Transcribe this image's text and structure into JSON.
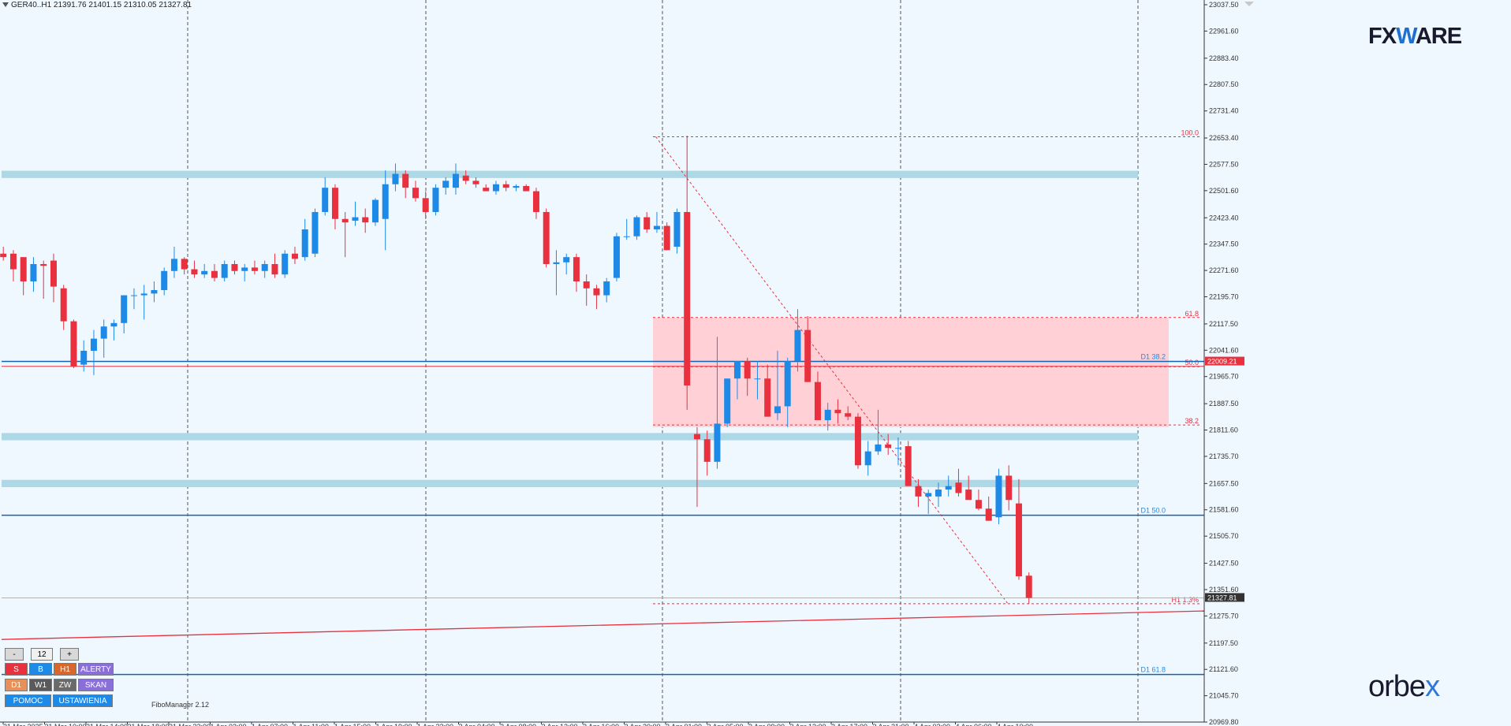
{
  "header": {
    "symbol_info": "GER40..H1  21391.76 21401.15 21310.05 21327.81"
  },
  "colors": {
    "bull": "#1e8ae8",
    "bear": "#e8303f",
    "background": "#f0f8ff",
    "zone": "#add8e6",
    "fib_zone": "#ffd1d6",
    "level_line": "#1464b4"
  },
  "chart_data": {
    "type": "candlestick",
    "symbol": "GER40..",
    "timeframe": "H1",
    "ylim": [
      20969.8,
      23037.5
    ],
    "y_ticks": [
      "23037.50",
      "22961.60",
      "22883.40",
      "22807.50",
      "22731.40",
      "22653.40",
      "22577.50",
      "22501.60",
      "22423.40",
      "22347.50",
      "22271.60",
      "22195.70",
      "22117.50",
      "22041.60",
      "21965.70",
      "21887.50",
      "21811.60",
      "21735.70",
      "21657.50",
      "21581.60",
      "21505.70",
      "21427.50",
      "21351.60",
      "21275.70",
      "21197.50",
      "21121.60",
      "21045.70",
      "20969.80"
    ],
    "x_ticks": [
      "31 Mar 2025",
      "31 Mar 10:00",
      "31 Mar 14:00",
      "31 Mar 18:00",
      "31 Mar 22:00",
      "1 Apr 03:00",
      "1 Apr 07:00",
      "1 Apr 11:00",
      "1 Apr 15:00",
      "1 Apr 19:00",
      "1 Apr 23:00",
      "2 Apr 04:00",
      "2 Apr 08:00",
      "2 Apr 12:00",
      "2 Apr 16:00",
      "2 Apr 20:00",
      "3 Apr 01:00",
      "3 Apr 05:00",
      "3 Apr 09:00",
      "3 Apr 13:00",
      "3 Apr 17:00",
      "3 Apr 21:00",
      "4 Apr 02:00",
      "4 Apr 06:00",
      "4 Apr 10:00"
    ],
    "candles": [
      {
        "o": 22320,
        "h": 22340,
        "l": 22300,
        "c": 22310
      },
      {
        "o": 22320,
        "h": 22330,
        "l": 22240,
        "c": 22275
      },
      {
        "o": 22310,
        "h": 22310,
        "l": 22200,
        "c": 22240
      },
      {
        "o": 22240,
        "h": 22310,
        "l": 22210,
        "c": 22290
      },
      {
        "o": 22290,
        "h": 22300,
        "l": 22190,
        "c": 22285
      },
      {
        "o": 22300,
        "h": 22320,
        "l": 22180,
        "c": 22225
      },
      {
        "o": 22220,
        "h": 22230,
        "l": 22100,
        "c": 22125
      },
      {
        "o": 22125,
        "h": 22130,
        "l": 21990,
        "c": 21995
      },
      {
        "o": 22000,
        "h": 22070,
        "l": 21980,
        "c": 22040
      },
      {
        "o": 22040,
        "h": 22100,
        "l": 21970,
        "c": 22075
      },
      {
        "o": 22075,
        "h": 22130,
        "l": 22020,
        "c": 22110
      },
      {
        "o": 22110,
        "h": 22130,
        "l": 22070,
        "c": 22120
      },
      {
        "o": 22120,
        "h": 22200,
        "l": 22090,
        "c": 22200
      },
      {
        "o": 22200,
        "h": 22220,
        "l": 22160,
        "c": 22200
      },
      {
        "o": 22200,
        "h": 22230,
        "l": 22130,
        "c": 22205
      },
      {
        "o": 22205,
        "h": 22240,
        "l": 22180,
        "c": 22215
      },
      {
        "o": 22215,
        "h": 22280,
        "l": 22200,
        "c": 22270
      },
      {
        "o": 22270,
        "h": 22340,
        "l": 22250,
        "c": 22305
      },
      {
        "o": 22305,
        "h": 22310,
        "l": 22260,
        "c": 22275
      },
      {
        "o": 22275,
        "h": 22300,
        "l": 22250,
        "c": 22260
      },
      {
        "o": 22260,
        "h": 22290,
        "l": 22250,
        "c": 22270
      },
      {
        "o": 22270,
        "h": 22290,
        "l": 22240,
        "c": 22250
      },
      {
        "o": 22250,
        "h": 22300,
        "l": 22240,
        "c": 22290
      },
      {
        "o": 22290,
        "h": 22300,
        "l": 22260,
        "c": 22270
      },
      {
        "o": 22270,
        "h": 22290,
        "l": 22240,
        "c": 22280
      },
      {
        "o": 22280,
        "h": 22300,
        "l": 22260,
        "c": 22270
      },
      {
        "o": 22270,
        "h": 22300,
        "l": 22250,
        "c": 22290
      },
      {
        "o": 22290,
        "h": 22320,
        "l": 22250,
        "c": 22260
      },
      {
        "o": 22260,
        "h": 22330,
        "l": 22250,
        "c": 22320
      },
      {
        "o": 22320,
        "h": 22340,
        "l": 22290,
        "c": 22305
      },
      {
        "o": 22310,
        "h": 22420,
        "l": 22300,
        "c": 22390
      },
      {
        "o": 22320,
        "h": 22450,
        "l": 22310,
        "c": 22440
      },
      {
        "o": 22440,
        "h": 22540,
        "l": 22430,
        "c": 22510
      },
      {
        "o": 22510,
        "h": 22520,
        "l": 22390,
        "c": 22420
      },
      {
        "o": 22420,
        "h": 22440,
        "l": 22310,
        "c": 22410
      },
      {
        "o": 22415,
        "h": 22470,
        "l": 22400,
        "c": 22425
      },
      {
        "o": 22425,
        "h": 22450,
        "l": 22380,
        "c": 22410
      },
      {
        "o": 22410,
        "h": 22480,
        "l": 22400,
        "c": 22475
      },
      {
        "o": 22420,
        "h": 22560,
        "l": 22330,
        "c": 22520
      },
      {
        "o": 22520,
        "h": 22580,
        "l": 22500,
        "c": 22550
      },
      {
        "o": 22550,
        "h": 22560,
        "l": 22480,
        "c": 22510
      },
      {
        "o": 22510,
        "h": 22530,
        "l": 22470,
        "c": 22480
      },
      {
        "o": 22480,
        "h": 22500,
        "l": 22420,
        "c": 22440
      },
      {
        "o": 22440,
        "h": 22520,
        "l": 22430,
        "c": 22510
      },
      {
        "o": 22510,
        "h": 22540,
        "l": 22490,
        "c": 22530
      },
      {
        "o": 22510,
        "h": 22580,
        "l": 22490,
        "c": 22550
      },
      {
        "o": 22545,
        "h": 22560,
        "l": 22520,
        "c": 22530
      },
      {
        "o": 22530,
        "h": 22540,
        "l": 22510,
        "c": 22520
      },
      {
        "o": 22510,
        "h": 22520,
        "l": 22500,
        "c": 22500
      },
      {
        "o": 22500,
        "h": 22530,
        "l": 22490,
        "c": 22520
      },
      {
        "o": 22520,
        "h": 22530,
        "l": 22500,
        "c": 22510
      },
      {
        "o": 22510,
        "h": 22520,
        "l": 22500,
        "c": 22515
      },
      {
        "o": 22515,
        "h": 22520,
        "l": 22500,
        "c": 22500
      },
      {
        "o": 22500,
        "h": 22510,
        "l": 22420,
        "c": 22440
      },
      {
        "o": 22440,
        "h": 22450,
        "l": 22280,
        "c": 22290
      },
      {
        "o": 22290,
        "h": 22330,
        "l": 22200,
        "c": 22295
      },
      {
        "o": 22295,
        "h": 22320,
        "l": 22260,
        "c": 22310
      },
      {
        "o": 22310,
        "h": 22320,
        "l": 22210,
        "c": 22240
      },
      {
        "o": 22240,
        "h": 22260,
        "l": 22170,
        "c": 22220
      },
      {
        "o": 22220,
        "h": 22230,
        "l": 22160,
        "c": 22200
      },
      {
        "o": 22200,
        "h": 22250,
        "l": 22180,
        "c": 22240
      },
      {
        "o": 22250,
        "h": 22380,
        "l": 22240,
        "c": 22370
      },
      {
        "o": 22370,
        "h": 22420,
        "l": 22360,
        "c": 22370
      },
      {
        "o": 22370,
        "h": 22430,
        "l": 22360,
        "c": 22425
      },
      {
        "o": 22425,
        "h": 22440,
        "l": 22380,
        "c": 22390
      },
      {
        "o": 22390,
        "h": 22440,
        "l": 22380,
        "c": 22400
      },
      {
        "o": 22400,
        "h": 22410,
        "l": 22330,
        "c": 22330
      },
      {
        "o": 22340,
        "h": 22450,
        "l": 22320,
        "c": 22440
      },
      {
        "o": 22440,
        "h": 22660,
        "l": 21870,
        "c": 21940
      },
      {
        "o": 21800,
        "h": 21820,
        "l": 21590,
        "c": 21785
      },
      {
        "o": 21785,
        "h": 21810,
        "l": 21680,
        "c": 21720
      },
      {
        "o": 21720,
        "h": 22080,
        "l": 21700,
        "c": 21830
      },
      {
        "o": 21830,
        "h": 21960,
        "l": 21820,
        "c": 21960
      },
      {
        "o": 21960,
        "h": 22010,
        "l": 21900,
        "c": 22010
      },
      {
        "o": 22010,
        "h": 22020,
        "l": 21910,
        "c": 21960
      },
      {
        "o": 21960,
        "h": 22010,
        "l": 21900,
        "c": 21960
      },
      {
        "o": 21960,
        "h": 22000,
        "l": 21850,
        "c": 21850
      },
      {
        "o": 21860,
        "h": 22040,
        "l": 21840,
        "c": 21880
      },
      {
        "o": 21880,
        "h": 22020,
        "l": 21820,
        "c": 22010
      },
      {
        "o": 22010,
        "h": 22160,
        "l": 21980,
        "c": 22100
      },
      {
        "o": 22100,
        "h": 22140,
        "l": 21950,
        "c": 21950
      },
      {
        "o": 21950,
        "h": 21980,
        "l": 21840,
        "c": 21840
      },
      {
        "o": 21840,
        "h": 21890,
        "l": 21810,
        "c": 21870
      },
      {
        "o": 21870,
        "h": 21900,
        "l": 21830,
        "c": 21860
      },
      {
        "o": 21860,
        "h": 21880,
        "l": 21840,
        "c": 21850
      },
      {
        "o": 21850,
        "h": 21860,
        "l": 21700,
        "c": 21710
      },
      {
        "o": 21710,
        "h": 21780,
        "l": 21680,
        "c": 21750
      },
      {
        "o": 21750,
        "h": 21870,
        "l": 21740,
        "c": 21770
      },
      {
        "o": 21770,
        "h": 21800,
        "l": 21740,
        "c": 21760
      },
      {
        "o": 21760,
        "h": 21790,
        "l": 21710,
        "c": 21760
      },
      {
        "o": 21765,
        "h": 21780,
        "l": 21650,
        "c": 21650
      },
      {
        "o": 21650,
        "h": 21670,
        "l": 21590,
        "c": 21620
      },
      {
        "o": 21620,
        "h": 21640,
        "l": 21570,
        "c": 21630
      },
      {
        "o": 21620,
        "h": 21660,
        "l": 21590,
        "c": 21640
      },
      {
        "o": 21640,
        "h": 21680,
        "l": 21620,
        "c": 21650
      },
      {
        "o": 21660,
        "h": 21700,
        "l": 21620,
        "c": 21630
      },
      {
        "o": 21640,
        "h": 21680,
        "l": 21610,
        "c": 21610
      },
      {
        "o": 21610,
        "h": 21640,
        "l": 21580,
        "c": 21585
      },
      {
        "o": 21585,
        "h": 21620,
        "l": 21550,
        "c": 21550
      },
      {
        "o": 21560,
        "h": 21700,
        "l": 21540,
        "c": 21680
      },
      {
        "o": 21680,
        "h": 21710,
        "l": 21580,
        "c": 21610
      },
      {
        "o": 21600,
        "h": 21670,
        "l": 21380,
        "c": 21390
      },
      {
        "o": 21391.76,
        "h": 21401.15,
        "l": 21310.05,
        "c": 21327.81
      }
    ],
    "zones": [
      {
        "y1": 22559,
        "y2": 22538
      },
      {
        "y1": 21803,
        "y2": 21782
      },
      {
        "y1": 21668,
        "y2": 21647
      }
    ],
    "fib_zone": {
      "y1": 22135,
      "y2": 21820
    },
    "fib_levels": [
      {
        "label": "100.0",
        "value": 22657
      },
      {
        "label": "61.8",
        "value": 22136
      },
      {
        "label": "50.0",
        "value": 21994
      },
      {
        "label": "38.2",
        "value": 21826
      },
      {
        "label": "H1 1.3%",
        "value": 21311
      }
    ],
    "horizontal_levels": [
      {
        "label": "D1 38.2",
        "value": 22009.21
      },
      {
        "label": "D1 50.0",
        "value": 21566
      },
      {
        "label": "D1 61.8",
        "value": 21107
      }
    ],
    "price_tags": [
      {
        "label": "22009.21",
        "value": 22009.21,
        "color": "#e8303f"
      },
      {
        "label": "21327.81",
        "value": 21327.81,
        "color": "#333333"
      }
    ],
    "trendline": {
      "from": {
        "x": "31 Mar 2025",
        "y": 21208
      },
      "to": {
        "x": "4 Apr 10:00",
        "y": 21290
      }
    },
    "fib_diagonal": {
      "from": {
        "x": "2 Apr 20:00",
        "y": 22657
      },
      "to": {
        "x": "4 Apr 10:00",
        "y": 21311
      }
    }
  },
  "buttons": {
    "minus": "-",
    "value": "12",
    "plus": "+",
    "s": "S",
    "b": "B",
    "h1": "H1",
    "alerty": "ALERTY",
    "d1": "D1",
    "w1": "W1",
    "zw": "ZW",
    "skan": "SKAN",
    "pomoc": "POMOC",
    "ustawienia": "USTAWIENIA"
  },
  "indicator_label": "FiboManager 2.12",
  "logos": {
    "fxware_a": "FX",
    "fxware_w": "W",
    "fxware_b": "ARE",
    "orbex_a": "orbe",
    "orbex_b": "x"
  }
}
